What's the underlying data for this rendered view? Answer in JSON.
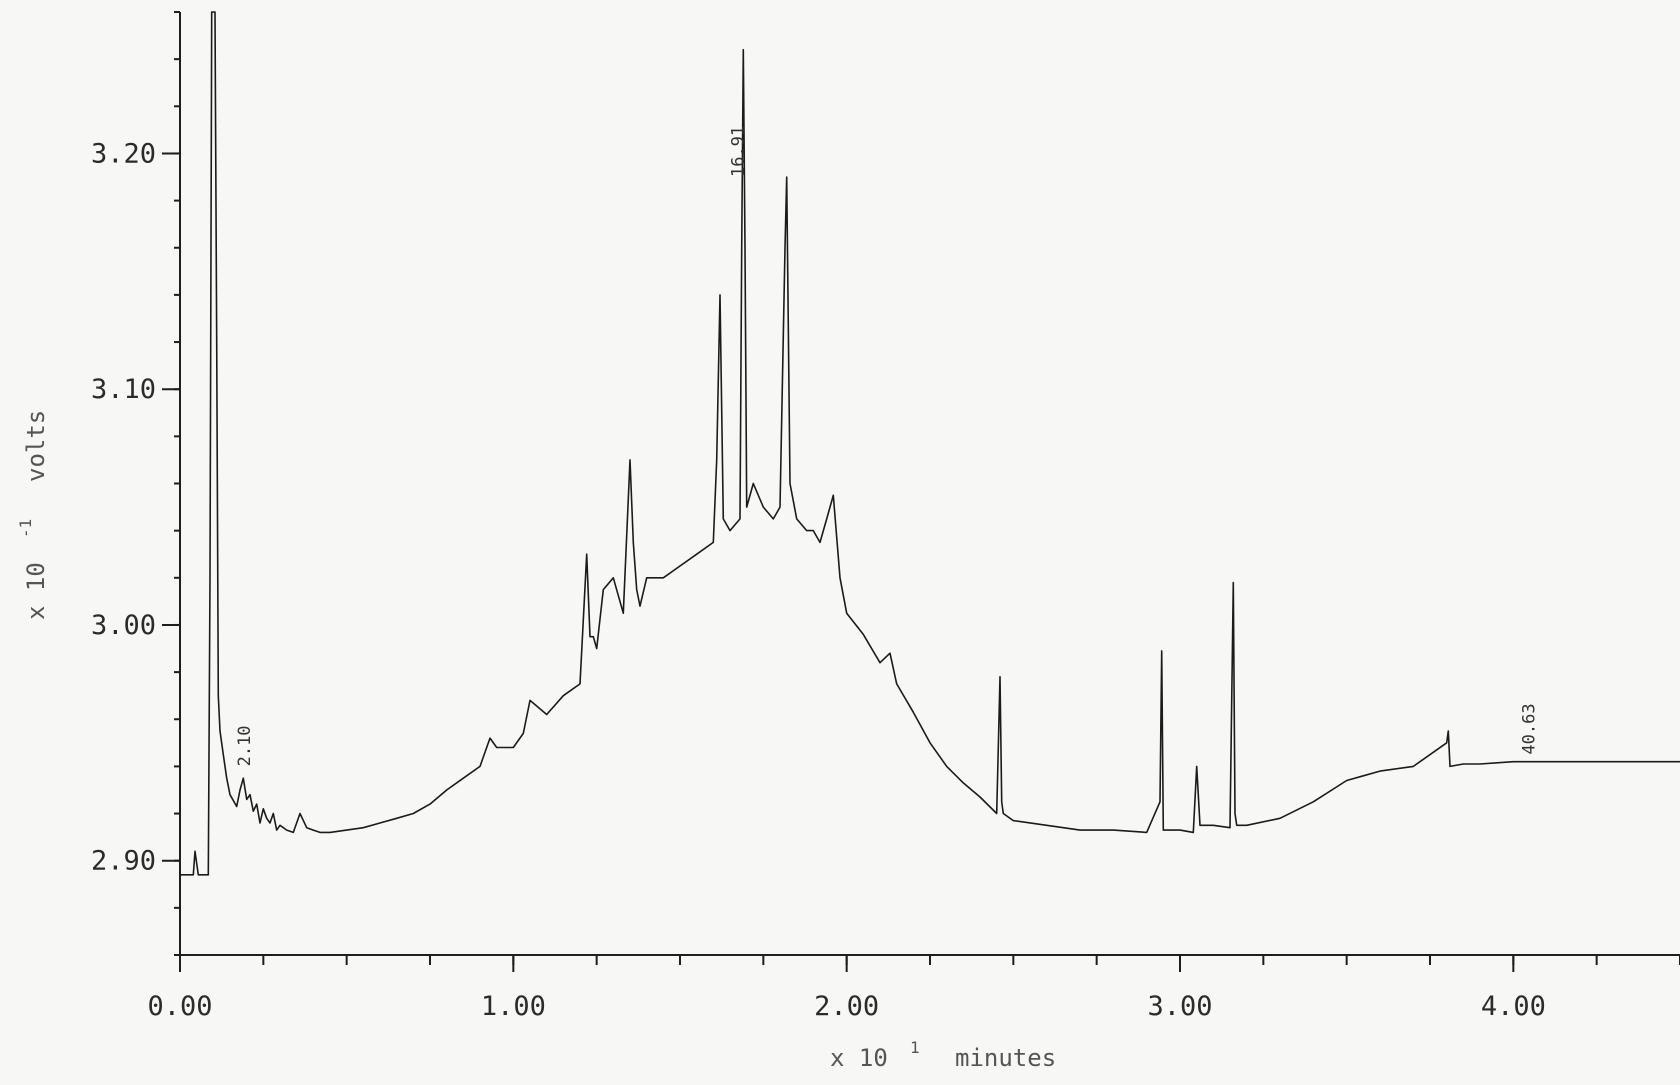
{
  "chart_data": {
    "type": "line",
    "title": "",
    "xlabel": "x 10",
    "xlabel_exponent": "1",
    "xlabel_unit": "minutes",
    "ylabel": "x 10",
    "ylabel_exponent": "-1",
    "ylabel_unit": "volts",
    "xlim": [
      0,
      4.5
    ],
    "ylim": [
      2.86,
      3.26
    ],
    "grid": false,
    "x_ticks": [
      {
        "value": 0,
        "label": "0.00"
      },
      {
        "value": 1,
        "label": "1.00"
      },
      {
        "value": 2,
        "label": "2.00"
      },
      {
        "value": 3,
        "label": "3.00"
      },
      {
        "value": 4,
        "label": "4.00"
      }
    ],
    "y_ticks": [
      {
        "value": 2.9,
        "label": "2.90"
      },
      {
        "value": 3.0,
        "label": "3.00"
      },
      {
        "value": 3.1,
        "label": "3.10"
      },
      {
        "value": 3.2,
        "label": "3.20"
      }
    ],
    "annotations": [
      {
        "text": "2.10",
        "x": 0.21,
        "y": 2.94
      },
      {
        "text": "16.91",
        "x": 1.69,
        "y": 3.19
      },
      {
        "text": "40.63",
        "x": 4.063,
        "y": 2.945
      }
    ],
    "series": [
      {
        "x": [
          0.0,
          0.04,
          0.045,
          0.055,
          0.06,
          0.07,
          0.075,
          0.085,
          0.09,
          0.095,
          0.1,
          0.105,
          0.11,
          0.115,
          0.12,
          0.13,
          0.14,
          0.15,
          0.17,
          0.18,
          0.19,
          0.2,
          0.21,
          0.22,
          0.23,
          0.24,
          0.25,
          0.26,
          0.27,
          0.28,
          0.29,
          0.3,
          0.32,
          0.34,
          0.36,
          0.38,
          0.4,
          0.42,
          0.45,
          0.5,
          0.55,
          0.6,
          0.65,
          0.7,
          0.75,
          0.8,
          0.85,
          0.9,
          0.93,
          0.95,
          1.0,
          1.03,
          1.05,
          1.1,
          1.15,
          1.2,
          1.22,
          1.23,
          1.24,
          1.25,
          1.27,
          1.3,
          1.33,
          1.35,
          1.36,
          1.37,
          1.38,
          1.4,
          1.45,
          1.5,
          1.55,
          1.6,
          1.61,
          1.62,
          1.63,
          1.65,
          1.68,
          1.685,
          1.69,
          1.695,
          1.7,
          1.72,
          1.75,
          1.78,
          1.8,
          1.815,
          1.82,
          1.83,
          1.85,
          1.88,
          1.9,
          1.92,
          1.94,
          1.96,
          1.98,
          2.0,
          2.05,
          2.1,
          2.13,
          2.15,
          2.2,
          2.25,
          2.3,
          2.35,
          2.4,
          2.45,
          2.46,
          2.465,
          2.47,
          2.5,
          2.6,
          2.7,
          2.8,
          2.9,
          2.94,
          2.945,
          2.95,
          3.0,
          3.04,
          3.05,
          3.06,
          3.1,
          3.15,
          3.16,
          3.165,
          3.17,
          3.2,
          3.3,
          3.4,
          3.5,
          3.55,
          3.6,
          3.7,
          3.8,
          3.805,
          3.81,
          3.85,
          3.9,
          4.0,
          4.1,
          4.2,
          4.3,
          4.4,
          4.5
        ],
        "y": [
          2.894,
          2.894,
          2.904,
          2.894,
          2.894,
          2.894,
          2.894,
          2.894,
          3.02,
          3.26,
          3.26,
          3.26,
          3.12,
          2.97,
          2.955,
          2.945,
          2.935,
          2.928,
          2.923,
          2.93,
          2.935,
          2.926,
          2.928,
          2.921,
          2.924,
          2.916,
          2.922,
          2.918,
          2.916,
          2.92,
          2.913,
          2.915,
          2.913,
          2.912,
          2.92,
          2.914,
          2.913,
          2.912,
          2.912,
          2.913,
          2.914,
          2.916,
          2.918,
          2.92,
          2.924,
          2.93,
          2.935,
          2.94,
          2.952,
          2.948,
          2.948,
          2.954,
          2.968,
          2.962,
          2.97,
          2.975,
          3.03,
          2.995,
          2.995,
          2.99,
          3.015,
          3.02,
          3.005,
          3.07,
          3.035,
          3.015,
          3.008,
          3.02,
          3.02,
          3.025,
          3.03,
          3.035,
          3.07,
          3.14,
          3.045,
          3.04,
          3.045,
          3.16,
          3.244,
          3.16,
          3.05,
          3.06,
          3.05,
          3.045,
          3.05,
          3.16,
          3.19,
          3.06,
          3.045,
          3.04,
          3.04,
          3.035,
          3.045,
          3.055,
          3.02,
          3.005,
          2.996,
          2.984,
          2.988,
          2.975,
          2.963,
          2.95,
          2.94,
          2.933,
          2.927,
          2.92,
          2.978,
          2.925,
          2.92,
          2.917,
          2.915,
          2.913,
          2.913,
          2.912,
          2.925,
          2.989,
          2.913,
          2.913,
          2.912,
          2.94,
          2.915,
          2.915,
          2.914,
          3.018,
          2.92,
          2.915,
          2.915,
          2.918,
          2.925,
          2.934,
          2.936,
          2.938,
          2.94,
          2.95,
          2.955,
          2.94,
          2.941,
          2.941,
          2.942,
          2.942,
          2.942,
          2.942,
          2.942,
          2.942
        ]
      }
    ]
  }
}
